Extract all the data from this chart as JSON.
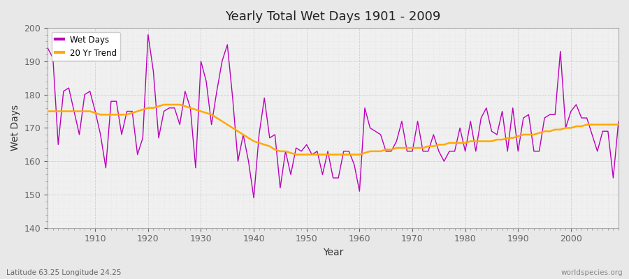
{
  "title": "Yearly Total Wet Days 1901 - 2009",
  "xlabel": "Year",
  "ylabel": "Wet Days",
  "bottom_left_label": "Latitude 63.25 Longitude 24.25",
  "bottom_right_label": "worldspecies.org",
  "ylim": [
    140,
    200
  ],
  "yticks": [
    140,
    150,
    160,
    170,
    180,
    190,
    200
  ],
  "figure_bg_color": "#e8e8e8",
  "plot_bg_color": "#f0f0f0",
  "wet_days_color": "#bb00bb",
  "trend_color": "#ffaa00",
  "wet_days_linewidth": 1.0,
  "trend_linewidth": 1.8,
  "years": [
    1901,
    1902,
    1903,
    1904,
    1905,
    1906,
    1907,
    1908,
    1909,
    1910,
    1911,
    1912,
    1913,
    1914,
    1915,
    1916,
    1917,
    1918,
    1919,
    1920,
    1921,
    1922,
    1923,
    1924,
    1925,
    1926,
    1927,
    1928,
    1929,
    1930,
    1931,
    1932,
    1933,
    1934,
    1935,
    1936,
    1937,
    1938,
    1939,
    1940,
    1941,
    1942,
    1943,
    1944,
    1945,
    1946,
    1947,
    1948,
    1949,
    1950,
    1951,
    1952,
    1953,
    1954,
    1955,
    1956,
    1957,
    1958,
    1959,
    1960,
    1961,
    1962,
    1963,
    1964,
    1965,
    1966,
    1967,
    1968,
    1969,
    1970,
    1971,
    1972,
    1973,
    1974,
    1975,
    1976,
    1977,
    1978,
    1979,
    1980,
    1981,
    1982,
    1983,
    1984,
    1985,
    1986,
    1987,
    1988,
    1989,
    1990,
    1991,
    1992,
    1993,
    1994,
    1995,
    1996,
    1997,
    1998,
    1999,
    2000,
    2001,
    2002,
    2003,
    2004,
    2005,
    2006,
    2007,
    2008,
    2009
  ],
  "wet_days": [
    194,
    191,
    165,
    181,
    182,
    175,
    168,
    180,
    181,
    175,
    168,
    158,
    178,
    178,
    168,
    175,
    175,
    162,
    167,
    198,
    187,
    167,
    175,
    176,
    176,
    171,
    181,
    176,
    158,
    190,
    184,
    171,
    181,
    190,
    195,
    179,
    160,
    168,
    160,
    149,
    168,
    179,
    167,
    168,
    152,
    163,
    156,
    164,
    163,
    165,
    162,
    163,
    156,
    163,
    155,
    155,
    163,
    163,
    159,
    151,
    176,
    170,
    169,
    168,
    163,
    163,
    166,
    172,
    163,
    163,
    172,
    163,
    163,
    168,
    163,
    160,
    163,
    163,
    170,
    163,
    172,
    163,
    173,
    176,
    169,
    168,
    175,
    163,
    176,
    163,
    173,
    174,
    163,
    163,
    173,
    174,
    174,
    193,
    170,
    175,
    177,
    173,
    173,
    168,
    163,
    169,
    169,
    155,
    172
  ],
  "trend": [
    175.0,
    175.0,
    175.0,
    175.0,
    175.0,
    175.0,
    175.0,
    175.0,
    175.0,
    174.5,
    174.0,
    174.0,
    174.0,
    174.0,
    174.0,
    174.0,
    174.5,
    175.0,
    175.5,
    176.0,
    176.0,
    176.5,
    177.0,
    177.0,
    177.0,
    177.0,
    176.5,
    176.0,
    175.5,
    175.0,
    174.5,
    174.0,
    173.0,
    172.0,
    171.0,
    170.0,
    169.0,
    168.0,
    167.0,
    166.0,
    165.5,
    165.0,
    164.5,
    163.5,
    163.0,
    163.0,
    162.5,
    162.0,
    162.0,
    162.0,
    162.0,
    162.0,
    162.0,
    162.0,
    162.0,
    162.0,
    162.0,
    162.0,
    162.0,
    162.0,
    162.5,
    163.0,
    163.0,
    163.0,
    163.5,
    163.5,
    164.0,
    164.0,
    164.0,
    164.0,
    164.0,
    164.0,
    164.5,
    164.5,
    165.0,
    165.0,
    165.5,
    165.5,
    165.5,
    165.5,
    166.0,
    166.0,
    166.0,
    166.0,
    166.0,
    166.5,
    166.5,
    167.0,
    167.0,
    167.5,
    168.0,
    168.0,
    168.0,
    168.5,
    169.0,
    169.0,
    169.5,
    169.5,
    170.0,
    170.0,
    170.5,
    170.5,
    171.0,
    171.0,
    171.0,
    171.0,
    171.0,
    171.0,
    171.0
  ]
}
